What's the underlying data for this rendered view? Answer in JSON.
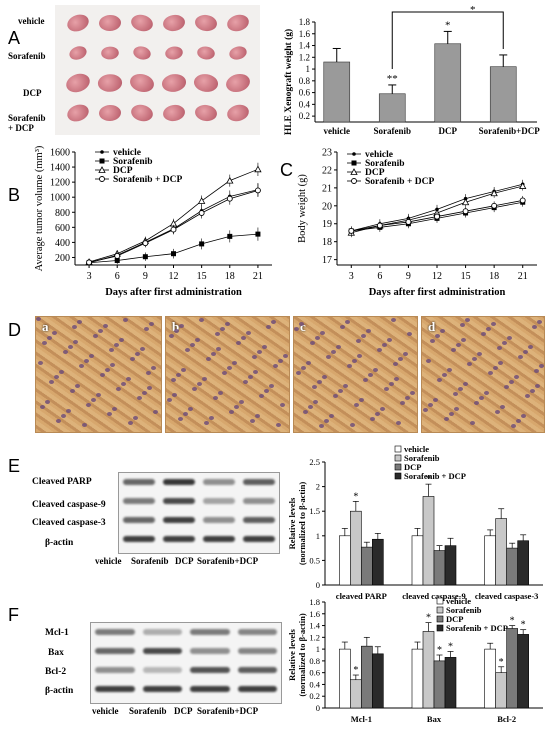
{
  "panels": {
    "A": "A",
    "B": "B",
    "C": "C",
    "D": "D",
    "E": "E",
    "F": "F"
  },
  "panelA_photo": {
    "rows": [
      "vehicle",
      "Sorafenib",
      "DCP",
      "Sorafenib\n+ DCP"
    ]
  },
  "chart_data": [
    {
      "id": "A",
      "type": "bar",
      "ylabel": "HLE Xenograft weight (g)",
      "categories": [
        "vehicle",
        "Sorafenib",
        "DCP",
        "Sorafenib+DCP"
      ],
      "values": [
        1.12,
        0.58,
        1.43,
        1.04
      ],
      "errors": [
        0.23,
        0.15,
        0.21,
        0.2
      ],
      "annotations": [
        "",
        "**",
        "*",
        ""
      ],
      "bracket_star": "*",
      "yticks": [
        0.2,
        0.4,
        0.6,
        0.8,
        1,
        1.2,
        1.4,
        1.6,
        1.8
      ],
      "ylim": [
        0.1,
        1.8
      ]
    },
    {
      "id": "B",
      "type": "line",
      "xlabel": "Days after first administration",
      "ylabel": "Average tumor volume (mm³)",
      "x": [
        3,
        6,
        9,
        12,
        15,
        18,
        21
      ],
      "yticks": [
        200,
        400,
        600,
        800,
        1000,
        1200,
        1400,
        1600
      ],
      "ylim": [
        100,
        1600
      ],
      "series": [
        {
          "name": "vehicle",
          "marker": "dot",
          "values": [
            130,
            230,
            400,
            580,
            820,
            1010,
            1100
          ]
        },
        {
          "name": "Sorafenib",
          "marker": "square",
          "values": [
            130,
            160,
            210,
            250,
            380,
            480,
            510
          ]
        },
        {
          "name": "DCP",
          "marker": "triangle",
          "values": [
            140,
            250,
            420,
            650,
            950,
            1220,
            1370
          ]
        },
        {
          "name": "Sorafenib + DCP",
          "marker": "circle",
          "values": [
            135,
            220,
            390,
            570,
            790,
            980,
            1090
          ]
        }
      ]
    },
    {
      "id": "C",
      "type": "line",
      "xlabel": "Days after first administration",
      "ylabel": "Body weight (g)",
      "x": [
        3,
        6,
        9,
        12,
        15,
        18,
        21
      ],
      "yticks": [
        17,
        18,
        19,
        20,
        21,
        22,
        23
      ],
      "ylim": [
        16.7,
        23
      ],
      "series": [
        {
          "name": "vehicle",
          "marker": "dot",
          "values": [
            18.6,
            19.0,
            19.3,
            19.8,
            20.4,
            20.8,
            21.2
          ]
        },
        {
          "name": "Sorafenib",
          "marker": "square",
          "values": [
            18.6,
            18.8,
            19.0,
            19.3,
            19.6,
            19.9,
            20.2
          ]
        },
        {
          "name": "DCP",
          "marker": "triangle",
          "values": [
            18.5,
            18.9,
            19.2,
            19.6,
            20.2,
            20.7,
            21.1
          ]
        },
        {
          "name": "Sorafenib + DCP",
          "marker": "circle",
          "values": [
            18.6,
            18.9,
            19.1,
            19.4,
            19.7,
            20.0,
            20.3
          ]
        }
      ]
    },
    {
      "id": "E",
      "type": "bar",
      "ylabel": "Relative levels\n(normalized to β-actin)",
      "categories": [
        "cleaved PARP",
        "cleaved caspase-9",
        "cleaved caspase-3"
      ],
      "series": [
        {
          "name": "vehicle",
          "values": [
            1.0,
            1.0,
            1.0
          ],
          "errors": [
            0.15,
            0.15,
            0.12
          ]
        },
        {
          "name": "Sorafenib",
          "values": [
            1.5,
            1.8,
            1.35
          ],
          "errors": [
            0.2,
            0.25,
            0.2
          ]
        },
        {
          "name": "DCP",
          "values": [
            0.77,
            0.7,
            0.75
          ],
          "errors": [
            0.1,
            0.1,
            0.1
          ]
        },
        {
          "name": "Sorafenib + DCP",
          "values": [
            0.93,
            0.8,
            0.9
          ],
          "errors": [
            0.12,
            0.15,
            0.12
          ]
        }
      ],
      "annotations": [
        [
          "",
          "*",
          "",
          ""
        ],
        [
          "",
          "*",
          "",
          ""
        ],
        [
          "",
          "",
          "",
          ""
        ]
      ],
      "yticks": [
        0,
        0.5,
        1,
        1.5,
        2,
        2.5
      ],
      "ylim": [
        0,
        2.5
      ]
    },
    {
      "id": "F",
      "type": "bar",
      "ylabel": "Relative levels\n(normalized to β-actin)",
      "categories": [
        "Mcl-1",
        "Bax",
        "Bcl-2"
      ],
      "series": [
        {
          "name": "vehicle",
          "values": [
            1.0,
            1.0,
            1.0
          ],
          "errors": [
            0.12,
            0.12,
            0.1
          ]
        },
        {
          "name": "Sorafenib",
          "values": [
            0.48,
            1.3,
            0.6
          ],
          "errors": [
            0.08,
            0.15,
            0.1
          ]
        },
        {
          "name": "DCP",
          "values": [
            1.05,
            0.8,
            1.35
          ],
          "errors": [
            0.15,
            0.1,
            0.05
          ]
        },
        {
          "name": "Sorafenib + DCP",
          "values": [
            0.92,
            0.86,
            1.25
          ],
          "errors": [
            0.12,
            0.1,
            0.08
          ]
        }
      ],
      "annotations": [
        [
          "",
          "*",
          "",
          ""
        ],
        [
          "",
          "*",
          "*",
          "*"
        ],
        [
          "",
          "*",
          "*",
          "*"
        ]
      ],
      "yticks": [
        0,
        0.2,
        0.4,
        0.6,
        0.8,
        1,
        1.2,
        1.4,
        1.6,
        1.8
      ],
      "ylim": [
        0,
        1.8
      ]
    }
  ],
  "panelD": {
    "labels": [
      "a",
      "b",
      "c",
      "d"
    ]
  },
  "panelE_blot": {
    "rows": [
      "Cleaved PARP",
      "Cleaved caspase-9",
      "Cleaved caspase-3",
      "β-actin"
    ],
    "lanes": [
      "vehicle",
      "Sorafenib",
      "DCP",
      "Sorafenib+DCP"
    ]
  },
  "panelF_blot": {
    "rows": [
      "Mcl-1",
      "Bax",
      "Bcl-2",
      "β-actin"
    ],
    "lanes": [
      "vehicle",
      "Sorafenib",
      "DCP",
      "Sorafenib+DCP"
    ]
  },
  "colors": {
    "bar_gray": "#9a9a9a",
    "vehicle": "#ffffff",
    "sorafenib": "#c8c8c8",
    "dcp": "#7a7a7a",
    "combo": "#2a2a2a"
  }
}
